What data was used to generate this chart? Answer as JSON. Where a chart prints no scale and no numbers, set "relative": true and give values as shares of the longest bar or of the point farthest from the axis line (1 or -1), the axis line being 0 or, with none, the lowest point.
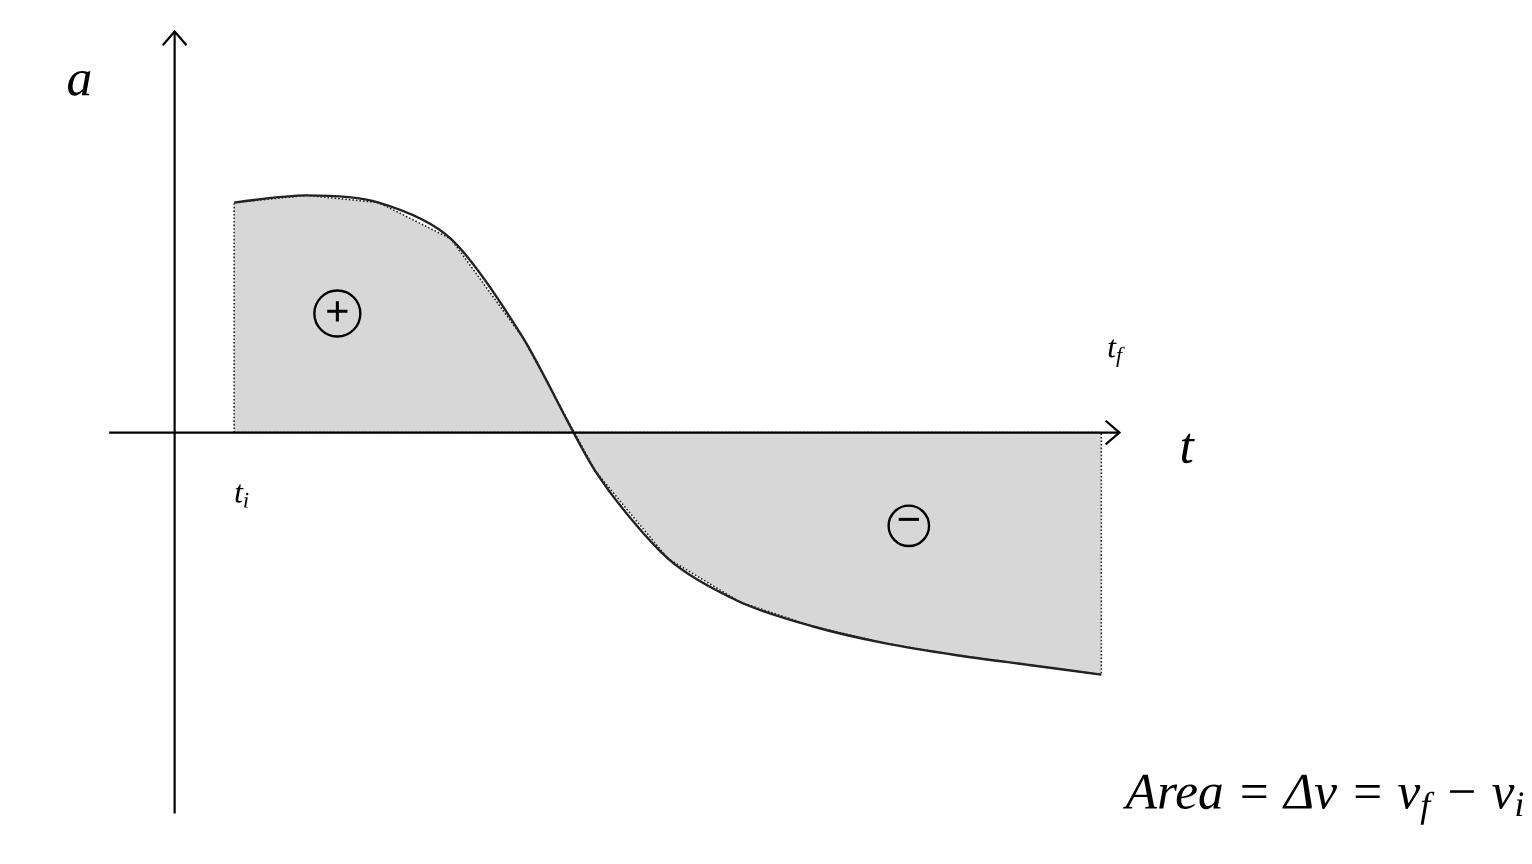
{
  "chart_data": {
    "type": "area",
    "relative": true,
    "xlabel": "t",
    "ylabel": "a",
    "categories": [
      null,
      null,
      null,
      null,
      null,
      null,
      null,
      null,
      null,
      null,
      null,
      null,
      null
    ],
    "series": [
      {
        "color": "#222222",
        "values": [
          0.95,
          0.98,
          0.95,
          0.8,
          0.39,
          -0.16,
          -0.52,
          -0.7,
          -0.8,
          -0.87,
          -0.92,
          -0.96,
          -1.0
        ]
      }
    ],
    "annotations": [
      "t$_{i}$",
      "t$_{f}$",
      "+",
      "−",
      "Area = Δv = v$_{f}$ − v$_{i}$"
    ]
  }
}
